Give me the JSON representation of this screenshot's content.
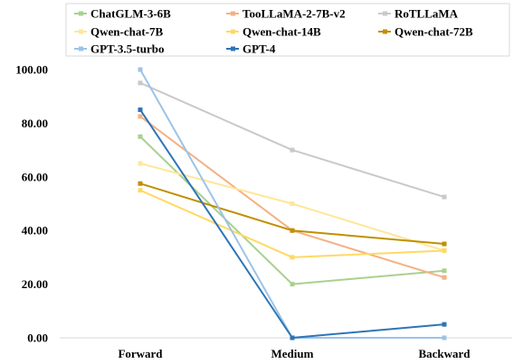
{
  "chart_data": {
    "type": "line",
    "categories": [
      "Forward",
      "Medium",
      "Backward"
    ],
    "y_ticks": [
      "0.00",
      "20.00",
      "40.00",
      "60.00",
      "80.00",
      "100.00"
    ],
    "ylim": [
      0,
      100
    ],
    "grid": false,
    "legend_position": "top",
    "series": [
      {
        "name": "ChatGLM-3-6B",
        "color": "#a9d18e",
        "values": [
          75,
          20,
          25
        ]
      },
      {
        "name": "TooLLaMA-2-7B-v2",
        "color": "#f4b183",
        "values": [
          82.5,
          40,
          22.5
        ]
      },
      {
        "name": "RoTLLaMA",
        "color": "#c9c9c9",
        "values": [
          95,
          70,
          52.5
        ]
      },
      {
        "name": "Qwen-chat-7B",
        "color": "#ffe699",
        "values": [
          65,
          50,
          32.5
        ]
      },
      {
        "name": "Qwen-chat-14B",
        "color": "#ffd966",
        "values": [
          55,
          30,
          32.5
        ]
      },
      {
        "name": "Qwen-chat-72B",
        "color": "#bf9000",
        "values": [
          57.5,
          40,
          35
        ]
      },
      {
        "name": "GPT-3.5-turbo",
        "color": "#9dc3e6",
        "values": [
          100,
          0,
          0
        ]
      },
      {
        "name": "GPT-4",
        "color": "#2e75b6",
        "values": [
          85,
          0,
          5
        ]
      }
    ]
  }
}
